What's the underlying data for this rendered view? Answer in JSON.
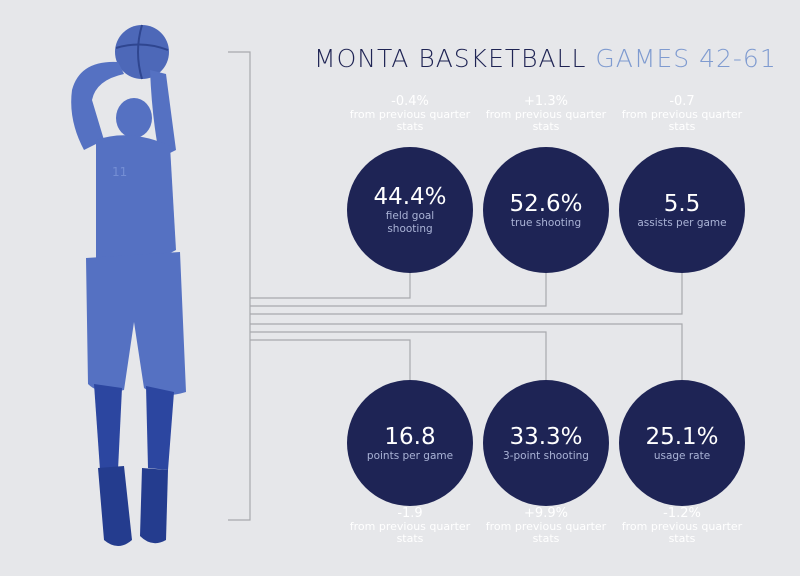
{
  "title": {
    "part1": "MONTA BASKETBALL",
    "part2": "GAMES 42-61"
  },
  "colors": {
    "circle": "#1e2455",
    "title_dark": "#1f2454",
    "title_light": "#7f9bd0",
    "background": "#e6e7ea",
    "connector": "#a8a9ad"
  },
  "player_image": "player-shooting-silhouette",
  "stats": [
    {
      "value": "44.4%",
      "label": "field goal shooting",
      "delta": "-0.4%",
      "note": "from previous quarter stats"
    },
    {
      "value": "52.6%",
      "label": "true shooting",
      "delta": "+1.3%",
      "note": "from previous quarter stats"
    },
    {
      "value": "5.5",
      "label": "assists per game",
      "delta": "-0.7",
      "note": "from previous quarter stats"
    },
    {
      "value": "16.8",
      "label": "points per game",
      "delta": "-1.9",
      "note": "from previous quarter stats"
    },
    {
      "value": "33.3%",
      "label": "3-point shooting",
      "delta": "+9.9%",
      "note": "from previous quarter stats"
    },
    {
      "value": "25.1%",
      "label": "usage rate",
      "delta": "-1.2%",
      "note": "from previous quarter stats"
    }
  ]
}
